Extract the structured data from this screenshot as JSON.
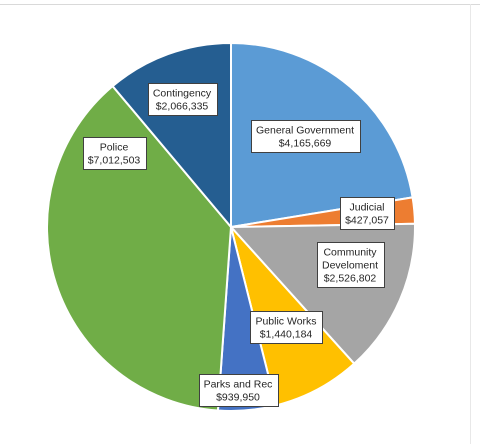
{
  "chart_data": {
    "type": "pie",
    "legend": "none",
    "start_angle_deg": 0,
    "direction": "clockwise",
    "slices": [
      {
        "label": "General Government",
        "value_label": "$4,165,669",
        "value": 4165669,
        "color": "#5b9bd5"
      },
      {
        "label": "Judicial",
        "value_label": "$427,057",
        "value": 427057,
        "color": "#ed7d31"
      },
      {
        "label": "Community Develoment",
        "label_lines": [
          "Community",
          "Develoment"
        ],
        "value_label": "$2,526,802",
        "value": 2526802,
        "color": "#a5a5a5"
      },
      {
        "label": "Public Works",
        "value_label": "$1,440,184",
        "value": 1440184,
        "color": "#ffc000"
      },
      {
        "label": "Parks and Rec",
        "value_label": "$939,950",
        "value": 939950,
        "color": "#4472c4"
      },
      {
        "label": "Police",
        "value_label": "$7,012,503",
        "value": 7012503,
        "color": "#70ad47"
      },
      {
        "label": "Contingency",
        "value_label": "$2,066,335",
        "value": 2066335,
        "color": "#255e91"
      }
    ]
  }
}
